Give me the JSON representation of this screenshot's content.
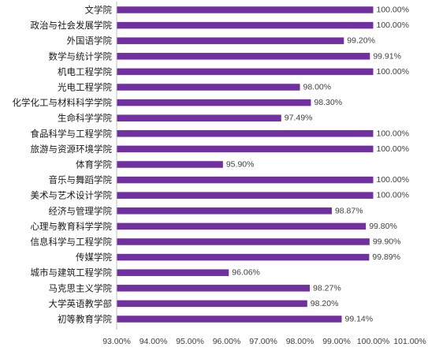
{
  "chart_data": {
    "type": "bar",
    "orientation": "horizontal",
    "title": "",
    "xlabel": "",
    "ylabel": "",
    "categories": [
      "文学院",
      "政治与社会发展学院",
      "外国语学院",
      "数学与统计学院",
      "机电工程学院",
      "光电工程学院",
      "化学化工与材料科学学院",
      "生命科学学院",
      "食品科学与工程学院",
      "旅游与资源环境学院",
      "体育学院",
      "音乐与舞蹈学院",
      "美术与艺术设计学院",
      "经济与管理学院",
      "心理与教育科学学院",
      "信息科学与工程学院",
      "传媒学院",
      "城市与建筑工程学院",
      "马克思主义学院",
      "大学英语教学部",
      "初等教育学院"
    ],
    "values": [
      100.0,
      100.0,
      99.2,
      99.91,
      100.0,
      98.0,
      98.3,
      97.49,
      100.0,
      100.0,
      95.9,
      100.0,
      100.0,
      98.87,
      99.8,
      99.9,
      99.89,
      96.06,
      98.27,
      98.2,
      99.14
    ],
    "value_labels": [
      "100.00%",
      "100.00%",
      "99.20%",
      "99.91%",
      "100.00%",
      "98.00%",
      "98.30%",
      "97.49%",
      "100.00%",
      "100.00%",
      "95.90%",
      "100.00%",
      "100.00%",
      "98.87%",
      "99.80%",
      "99.90%",
      "99.89%",
      "96.06%",
      "98.27%",
      "98.20%",
      "99.14%"
    ],
    "xlim": [
      93,
      101
    ],
    "ticks": [
      93,
      94,
      95,
      96,
      97,
      98,
      99,
      100,
      101
    ],
    "tick_labels": [
      "93.00%",
      "94.00%",
      "95.00%",
      "96.00%",
      "97.00%",
      "98.00%",
      "99.00%",
      "100.00%",
      "101.00%"
    ],
    "bar_color": "#7030a0",
    "grid": false,
    "legend": "none"
  }
}
